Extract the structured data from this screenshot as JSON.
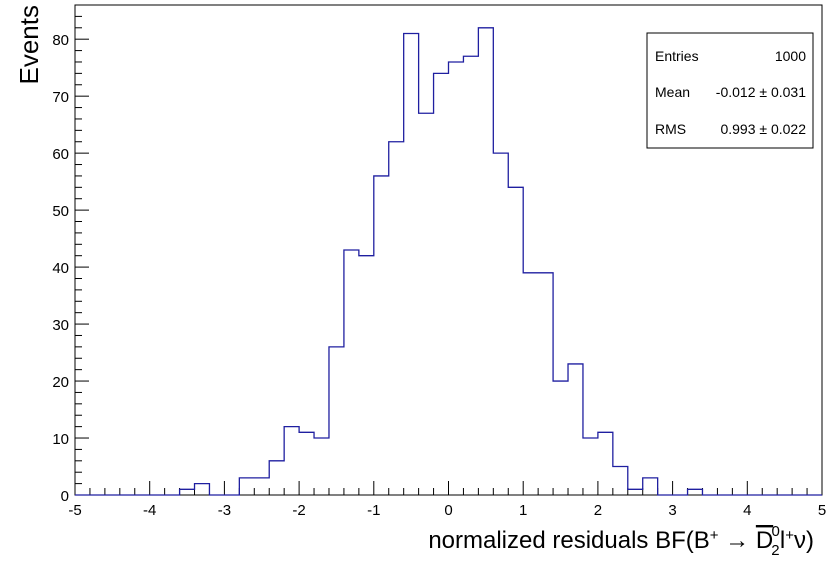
{
  "chart_data": {
    "type": "histogram",
    "xlabel": "normalized residuals BF(B⁺ → D̅₂⁰l⁺ν)",
    "ylabel": "Events",
    "xlim": [
      -5,
      5
    ],
    "ylim": [
      0,
      86
    ],
    "bin_width": 0.2,
    "bin_edges_start": -5,
    "x_ticks": [
      -5,
      -4,
      -3,
      -2,
      -1,
      0,
      1,
      2,
      3,
      4,
      5
    ],
    "x_tick_labels": [
      "-5",
      "-4",
      "-3",
      "-2",
      "-1",
      "0",
      "1",
      "2",
      "3",
      "4",
      "5"
    ],
    "y_ticks": [
      0,
      10,
      20,
      30,
      40,
      50,
      60,
      70,
      80
    ],
    "y_tick_labels": [
      "0",
      "10",
      "20",
      "30",
      "40",
      "50",
      "60",
      "70",
      "80"
    ],
    "counts": [
      0,
      0,
      0,
      0,
      0,
      0,
      0,
      1,
      2,
      0,
      0,
      3,
      3,
      6,
      12,
      11,
      10,
      26,
      43,
      42,
      56,
      62,
      81,
      67,
      74,
      76,
      77,
      82,
      60,
      54,
      39,
      39,
      20,
      23,
      10,
      11,
      5,
      1,
      3,
      0,
      0,
      1,
      0,
      0,
      0,
      0,
      0,
      0,
      0,
      0
    ],
    "line_color": "#1f1fa0",
    "stats": {
      "entries_label": "Entries",
      "entries_value": "1000",
      "mean_label": "Mean",
      "mean_value": "-0.012 ± 0.031",
      "rms_label": "RMS",
      "rms_value": "0.993 ± 0.022"
    }
  }
}
